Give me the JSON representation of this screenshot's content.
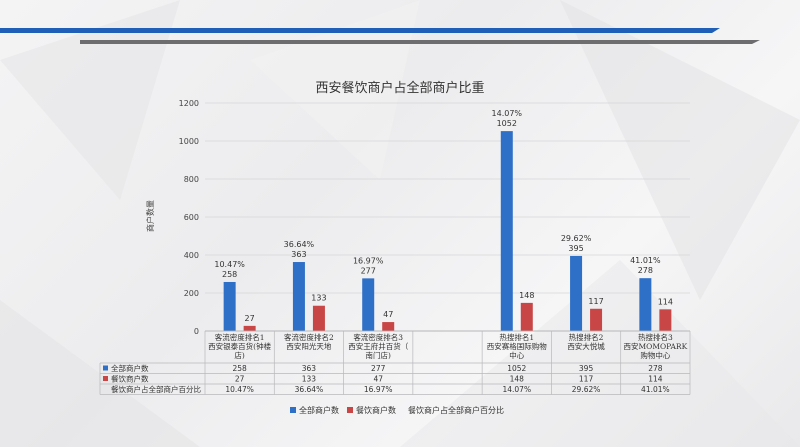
{
  "chart_data": {
    "type": "bar",
    "title": "西安餐饮商户占全部商户比重",
    "ylabel": "商户数量",
    "xlabel": "",
    "ylim": [
      0,
      1200
    ],
    "yticks": [
      0,
      200,
      400,
      600,
      800,
      1000,
      1200
    ],
    "grid": true,
    "legend_position": "bottom",
    "categories": [
      [
        "客流密度排名1",
        "西安银泰百货(钟楼",
        "店)"
      ],
      [
        "客流密度排名2",
        "西安阳光天地"
      ],
      [
        "客流密度排名3",
        "西安王府井百货（",
        "南门店)"
      ],
      [
        "",
        ""
      ],
      [
        "热搜排名1",
        "西安赛格国际购物",
        "中心"
      ],
      [
        "热搜排名2",
        "西安大悦城"
      ],
      [
        "热搜排名3",
        "西安MOMOPARK",
        "购物中心"
      ]
    ],
    "series": [
      {
        "name": "全部商户数",
        "color": "#2e6fc7",
        "values": [
          258,
          363,
          277,
          null,
          1052,
          395,
          278
        ]
      },
      {
        "name": "餐饮商户数",
        "color": "#c94646",
        "values": [
          27,
          133,
          47,
          null,
          148,
          117,
          114
        ]
      },
      {
        "name": "餐饮商户占全部商户百分比",
        "color": "#888888",
        "values": [
          "10.47%",
          "36.64%",
          "16.97%",
          "",
          "14.07%",
          "29.62%",
          "41.01%"
        ]
      }
    ]
  }
}
